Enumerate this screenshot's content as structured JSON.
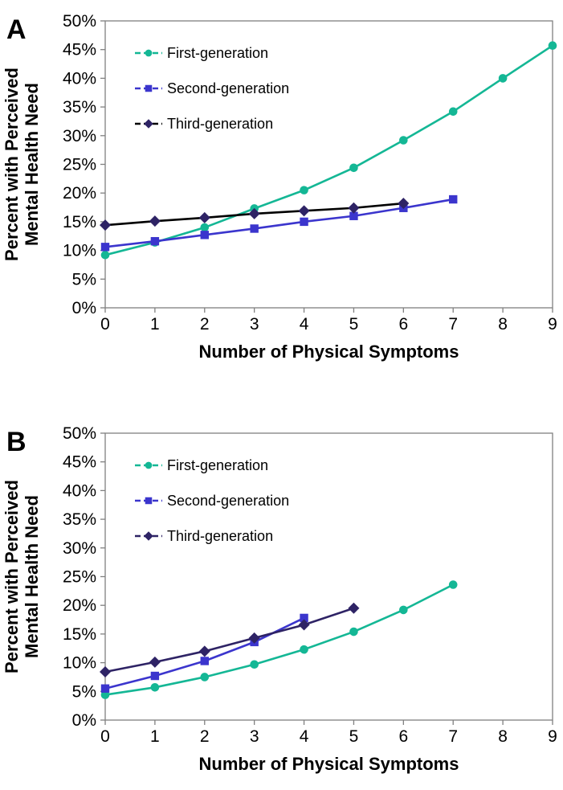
{
  "figure": {
    "background_color": "#ffffff",
    "axis_color": "#808080",
    "text_color": "#000000"
  },
  "chart_data": [
    {
      "type": "line",
      "panel_label": "A",
      "title": "",
      "xlabel": "Number of Physical Symptoms",
      "ylabel_lines": [
        "Percent with Perceived",
        "Mental Health Need"
      ],
      "xlim": [
        0,
        9
      ],
      "ylim": [
        0,
        50
      ],
      "xticks": [
        0,
        1,
        2,
        3,
        4,
        5,
        6,
        7,
        8,
        9
      ],
      "yticks": [
        "0%",
        "5%",
        "10%",
        "15%",
        "20%",
        "25%",
        "30%",
        "35%",
        "40%",
        "45%",
        "50%"
      ],
      "grid": false,
      "legend_position": "upper-left-inside",
      "axis_color": "#808080",
      "series": [
        {
          "name": "First-generation",
          "marker": "circle",
          "marker_color": "#14b795",
          "line_color": "#14b795",
          "x": [
            0,
            1,
            2,
            3,
            4,
            5,
            6,
            7,
            8,
            9
          ],
          "y": [
            9.2,
            11.4,
            14.0,
            17.3,
            20.5,
            24.4,
            29.2,
            34.2,
            40.0,
            45.7
          ]
        },
        {
          "name": "Second-generation",
          "marker": "square",
          "marker_color": "#3b35cd",
          "line_color": "#3b35cd",
          "x": [
            0,
            1,
            2,
            3,
            4,
            5,
            6,
            7
          ],
          "y": [
            10.6,
            11.6,
            12.7,
            13.8,
            15.0,
            16.0,
            17.4,
            18.9
          ]
        },
        {
          "name": "Third-generation",
          "marker": "diamond",
          "marker_color": "#2e2365",
          "line_color": "#000000",
          "x": [
            0,
            1,
            2,
            3,
            4,
            5,
            6
          ],
          "y": [
            14.4,
            15.1,
            15.7,
            16.4,
            16.9,
            17.4,
            18.2
          ]
        }
      ]
    },
    {
      "type": "line",
      "panel_label": "B",
      "title": "",
      "xlabel": "Number of Physical Symptoms",
      "ylabel_lines": [
        "Percent with Perceived",
        "Mental Health Need"
      ],
      "xlim": [
        0,
        9
      ],
      "ylim": [
        0,
        50
      ],
      "xticks": [
        0,
        1,
        2,
        3,
        4,
        5,
        6,
        7,
        8,
        9
      ],
      "yticks": [
        "0%",
        "5%",
        "10%",
        "15%",
        "20%",
        "25%",
        "30%",
        "35%",
        "40%",
        "45%",
        "50%"
      ],
      "grid": false,
      "legend_position": "upper-left-inside",
      "axis_color": "#808080",
      "series": [
        {
          "name": "First-generation",
          "marker": "circle",
          "marker_color": "#14b795",
          "line_color": "#14b795",
          "x": [
            0,
            1,
            2,
            3,
            4,
            5,
            6,
            7
          ],
          "y": [
            4.4,
            5.7,
            7.5,
            9.7,
            12.3,
            15.4,
            19.2,
            23.6
          ]
        },
        {
          "name": "Second-generation",
          "marker": "square",
          "marker_color": "#3b35cd",
          "line_color": "#3b35cd",
          "x": [
            0,
            1,
            2,
            3,
            4
          ],
          "y": [
            5.5,
            7.7,
            10.3,
            13.6,
            17.8
          ]
        },
        {
          "name": "Third-generation",
          "marker": "diamond",
          "marker_color": "#2e2365",
          "line_color": "#2e2365",
          "x": [
            0,
            1,
            2,
            3,
            4,
            5
          ],
          "y": [
            8.4,
            10.1,
            12.0,
            14.3,
            16.6,
            19.5
          ]
        }
      ]
    }
  ]
}
